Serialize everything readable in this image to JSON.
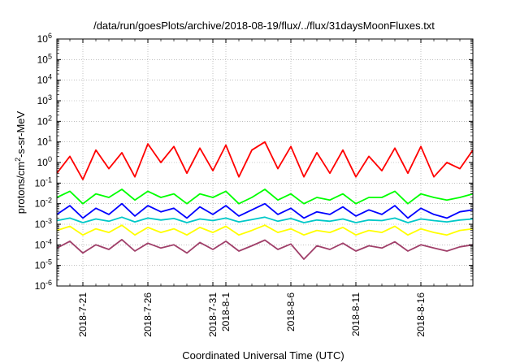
{
  "chart_data": {
    "type": "line",
    "title": "/data/run/goesPlots/archive/2018-08-19/flux/../flux/31daysMoonFluxes.txt",
    "xlabel": "Coordinated Universal Time (UTC)",
    "ylabel_main": "protons/cm",
    "ylabel_sup": "2",
    "ylabel_rest": "-s-sr-MeV",
    "y_scale": "log",
    "ylim": [
      1e-06,
      1000000.0
    ],
    "y_ticks": [
      {
        "exp": -6,
        "mantissa": "10",
        "sup": "-6"
      },
      {
        "exp": -5,
        "mantissa": "10",
        "sup": "-5"
      },
      {
        "exp": -4,
        "mantissa": "10",
        "sup": "-4"
      },
      {
        "exp": -3,
        "mantissa": "10",
        "sup": "-3"
      },
      {
        "exp": -2,
        "mantissa": "10",
        "sup": "-2"
      },
      {
        "exp": -1,
        "mantissa": "10",
        "sup": "-1"
      },
      {
        "exp": 0,
        "mantissa": "10",
        "sup": "0"
      },
      {
        "exp": 1,
        "mantissa": "10",
        "sup": "1"
      },
      {
        "exp": 2,
        "mantissa": "10",
        "sup": "2"
      },
      {
        "exp": 3,
        "mantissa": "10",
        "sup": "3"
      },
      {
        "exp": 4,
        "mantissa": "10",
        "sup": "4"
      },
      {
        "exp": 5,
        "mantissa": "10",
        "sup": "5"
      },
      {
        "exp": 6,
        "mantissa": "10",
        "sup": "6"
      }
    ],
    "x_range_days": [
      "2018-07-19",
      "2018-08-20"
    ],
    "x_ticks": [
      {
        "date": "2018-07-21",
        "label": "2018-7-21"
      },
      {
        "date": "2018-07-26",
        "label": "2018-7-26"
      },
      {
        "date": "2018-07-31",
        "label": "2018-7-31"
      },
      {
        "date": "2018-08-01",
        "label": "2018-8-1"
      },
      {
        "date": "2018-08-06",
        "label": "2018-8-6"
      },
      {
        "date": "2018-08-11",
        "label": "2018-8-11"
      },
      {
        "date": "2018-08-16",
        "label": "2018-8-16"
      }
    ],
    "grid": true,
    "series": [
      {
        "color": "#ff0000",
        "x": [
          "07-19",
          "07-20",
          "07-21",
          "07-22",
          "07-23",
          "07-24",
          "07-25",
          "07-26",
          "07-27",
          "07-28",
          "07-29",
          "07-30",
          "07-31",
          "08-01",
          "08-02",
          "08-03",
          "08-04",
          "08-05",
          "08-06",
          "08-07",
          "08-08",
          "08-09",
          "08-10",
          "08-11",
          "08-12",
          "08-13",
          "08-14",
          "08-15",
          "08-16",
          "08-17",
          "08-18",
          "08-19",
          "08-20"
        ],
        "values": [
          0.3,
          2,
          0.15,
          4,
          0.5,
          3,
          0.2,
          8,
          1,
          6,
          0.3,
          5,
          0.4,
          7,
          0.2,
          4,
          10,
          0.5,
          6,
          0.2,
          3,
          0.3,
          4,
          0.2,
          2,
          0.4,
          5,
          0.3,
          6,
          0.2,
          1,
          0.5,
          4
        ]
      },
      {
        "color": "#00ff00",
        "x": [
          "07-19",
          "07-20",
          "07-21",
          "07-22",
          "07-23",
          "07-24",
          "07-25",
          "07-26",
          "07-27",
          "07-28",
          "07-29",
          "07-30",
          "07-31",
          "08-01",
          "08-02",
          "08-03",
          "08-04",
          "08-05",
          "08-06",
          "08-07",
          "08-08",
          "08-09",
          "08-10",
          "08-11",
          "08-12",
          "08-13",
          "08-14",
          "08-15",
          "08-16",
          "08-17",
          "08-18",
          "08-19",
          "08-20"
        ],
        "values": [
          0.02,
          0.04,
          0.01,
          0.03,
          0.02,
          0.05,
          0.015,
          0.04,
          0.02,
          0.03,
          0.01,
          0.03,
          0.02,
          0.04,
          0.01,
          0.02,
          0.05,
          0.015,
          0.03,
          0.01,
          0.02,
          0.015,
          0.03,
          0.01,
          0.02,
          0.02,
          0.04,
          0.01,
          0.03,
          0.02,
          0.015,
          0.02,
          0.03
        ]
      },
      {
        "color": "#0000ff",
        "x": [
          "07-19",
          "07-20",
          "07-21",
          "07-22",
          "07-23",
          "07-24",
          "07-25",
          "07-26",
          "07-27",
          "07-28",
          "07-29",
          "07-30",
          "07-31",
          "08-01",
          "08-02",
          "08-03",
          "08-04",
          "08-05",
          "08-06",
          "08-07",
          "08-08",
          "08-09",
          "08-10",
          "08-11",
          "08-12",
          "08-13",
          "08-14",
          "08-15",
          "08-16",
          "08-17",
          "08-18",
          "08-19",
          "08-20"
        ],
        "values": [
          0.003,
          0.008,
          0.002,
          0.006,
          0.003,
          0.01,
          0.0025,
          0.008,
          0.004,
          0.006,
          0.002,
          0.007,
          0.003,
          0.008,
          0.0025,
          0.005,
          0.01,
          0.003,
          0.006,
          0.002,
          0.004,
          0.003,
          0.007,
          0.0025,
          0.005,
          0.003,
          0.008,
          0.002,
          0.006,
          0.003,
          0.002,
          0.004,
          0.005
        ]
      },
      {
        "color": "#00c8c8",
        "x": [
          "07-19",
          "07-20",
          "07-21",
          "07-22",
          "07-23",
          "07-24",
          "07-25",
          "07-26",
          "07-27",
          "07-28",
          "07-29",
          "07-30",
          "07-31",
          "08-01",
          "08-02",
          "08-03",
          "08-04",
          "08-05",
          "08-06",
          "08-07",
          "08-08",
          "08-09",
          "08-10",
          "08-11",
          "08-12",
          "08-13",
          "08-14",
          "08-15",
          "08-16",
          "08-17",
          "08-18",
          "08-19",
          "08-20"
        ],
        "values": [
          0.0015,
          0.002,
          0.0012,
          0.0018,
          0.0014,
          0.0022,
          0.0013,
          0.002,
          0.0016,
          0.0019,
          0.0012,
          0.0018,
          0.0015,
          0.002,
          0.0013,
          0.0017,
          0.0022,
          0.0014,
          0.0019,
          0.0012,
          0.0016,
          0.0014,
          0.0018,
          0.0012,
          0.0016,
          0.0015,
          0.002,
          0.0012,
          0.0018,
          0.0015,
          0.0013,
          0.0016,
          0.0018
        ]
      },
      {
        "color": "#ffff00",
        "x": [
          "07-19",
          "07-20",
          "07-21",
          "07-22",
          "07-23",
          "07-24",
          "07-25",
          "07-26",
          "07-27",
          "07-28",
          "07-29",
          "07-30",
          "07-31",
          "08-01",
          "08-02",
          "08-03",
          "08-04",
          "08-05",
          "08-06",
          "08-07",
          "08-08",
          "08-09",
          "08-10",
          "08-11",
          "08-12",
          "08-13",
          "08-14",
          "08-15",
          "08-16",
          "08-17",
          "08-18",
          "08-19",
          "08-20"
        ],
        "values": [
          0.0005,
          0.0008,
          0.0003,
          0.0006,
          0.0004,
          0.0009,
          0.0003,
          0.0007,
          0.0004,
          0.0006,
          0.0003,
          0.0007,
          0.0004,
          0.0008,
          0.0003,
          0.0005,
          0.0009,
          0.0004,
          0.0006,
          0.0003,
          0.0005,
          0.0004,
          0.0007,
          0.0003,
          0.0005,
          0.0004,
          0.0008,
          0.0003,
          0.0006,
          0.0004,
          0.0003,
          0.0005,
          0.0006
        ]
      },
      {
        "color": "#a0406a",
        "x": [
          "07-19",
          "07-20",
          "07-21",
          "07-22",
          "07-23",
          "07-24",
          "07-25",
          "07-26",
          "07-27",
          "07-28",
          "07-29",
          "07-30",
          "07-31",
          "08-01",
          "08-02",
          "08-03",
          "08-04",
          "08-05",
          "08-06",
          "08-07",
          "08-08",
          "08-09",
          "08-10",
          "08-11",
          "08-12",
          "08-13",
          "08-14",
          "08-15",
          "08-16",
          "08-17",
          "08-18",
          "08-19",
          "08-20"
        ],
        "values": [
          7e-05,
          0.00015,
          4e-05,
          0.0001,
          6e-05,
          0.00018,
          5e-05,
          0.00012,
          7e-05,
          0.0001,
          4e-05,
          0.00013,
          6e-05,
          0.00015,
          5e-05,
          9e-05,
          0.00017,
          6e-05,
          0.00011,
          2e-05,
          9e-05,
          6e-05,
          0.00012,
          5e-05,
          9e-05,
          7e-05,
          0.00014,
          5e-05,
          0.0001,
          7e-05,
          5e-05,
          8e-05,
          0.0001
        ]
      }
    ]
  }
}
